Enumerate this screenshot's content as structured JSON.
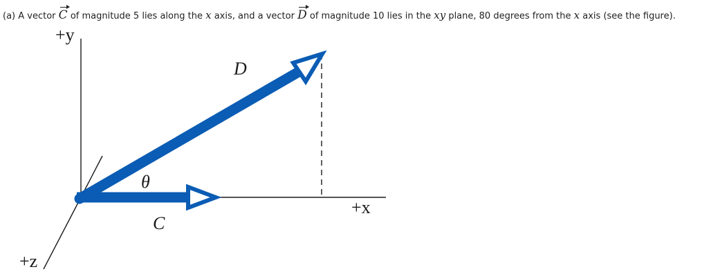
{
  "question": {
    "part": "(a) A vector",
    "vector_c": "C",
    "text_after_c": "of magnitude 5 lies along the",
    "x_axis_var_1": "x",
    "text_axis_1": "axis, and a vector",
    "vector_d": "D",
    "text_after_d": "of magnitude 10 lies in the",
    "plane_var": "xy",
    "text_plane": "plane, 80 degrees from the",
    "x_axis_var_2": "x",
    "text_end": "axis (see the figure)."
  },
  "figure": {
    "y_axis_label": "+y",
    "x_axis_label": "+x",
    "z_axis_label": "+z",
    "vector_c_label": "C",
    "vector_d_label": "D",
    "angle_label": "θ",
    "vector_color": "#0a5cb4"
  }
}
